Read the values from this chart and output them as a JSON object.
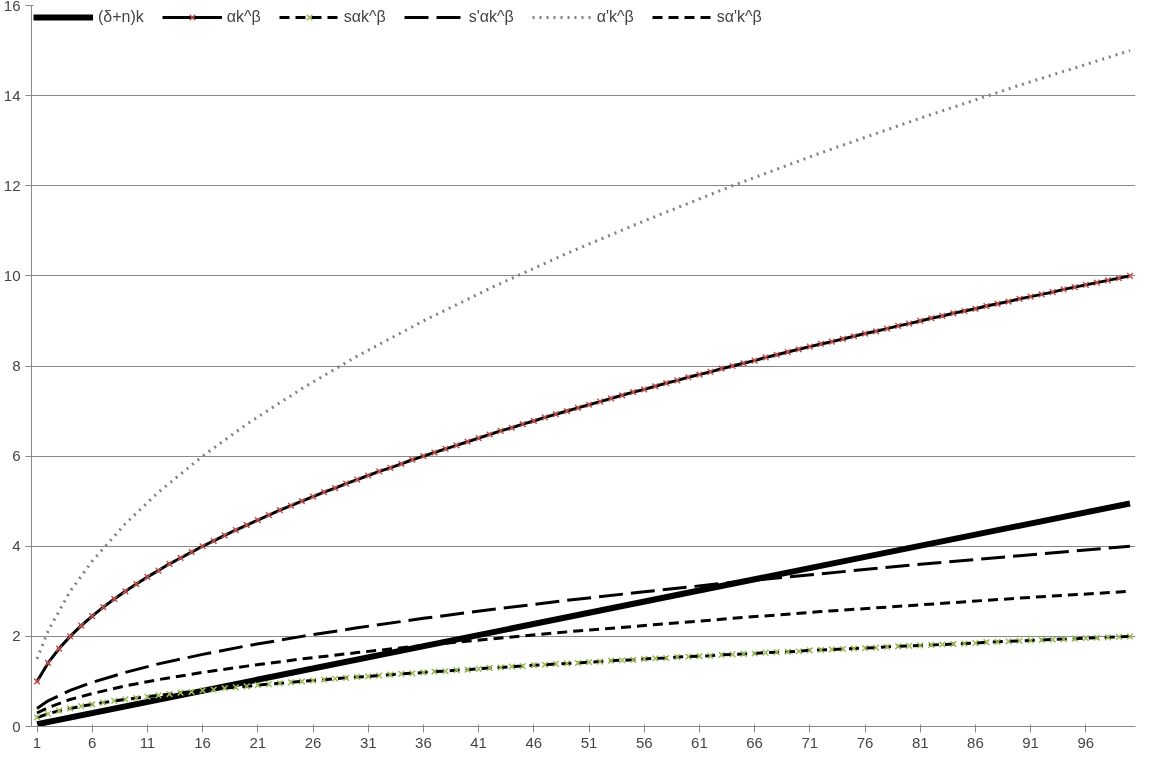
{
  "chart_data": {
    "type": "line",
    "xlim": [
      0.5,
      100.5
    ],
    "xticks": [
      1,
      6,
      11,
      16,
      21,
      26,
      31,
      36,
      41,
      46,
      51,
      56,
      61,
      66,
      71,
      76,
      81,
      86,
      91,
      96
    ],
    "ylim": [
      0,
      16
    ],
    "yticks": [
      0,
      2,
      4,
      6,
      8,
      10,
      12,
      14,
      16
    ],
    "grid": "y",
    "legend": "top",
    "x": [
      1,
      2,
      3,
      4,
      5,
      6,
      7,
      8,
      9,
      10,
      11,
      12,
      13,
      14,
      15,
      16,
      17,
      18,
      19,
      20,
      21,
      22,
      23,
      24,
      25,
      26,
      27,
      28,
      29,
      30,
      31,
      32,
      33,
      34,
      35,
      36,
      37,
      38,
      39,
      40,
      41,
      42,
      43,
      44,
      45,
      46,
      47,
      48,
      49,
      50,
      51,
      52,
      53,
      54,
      55,
      56,
      57,
      58,
      59,
      60,
      61,
      62,
      63,
      64,
      65,
      66,
      67,
      68,
      69,
      70,
      71,
      72,
      73,
      74,
      75,
      76,
      77,
      78,
      79,
      80,
      81,
      82,
      83,
      84,
      85,
      86,
      87,
      88,
      89,
      90,
      91,
      92,
      93,
      94,
      95,
      96,
      97,
      98,
      99,
      100
    ],
    "series": [
      {
        "name": "(δ+n)k",
        "color": "#000000",
        "x": [
          1,
          100
        ],
        "values": [
          0.05,
          4.95
        ],
        "line_style": "solid",
        "marker": "none"
      },
      {
        "name": "αk^β",
        "color": "#c0504d",
        "marker": "cross",
        "line_style": "solid",
        "values": [
          1.0,
          1.41,
          1.73,
          2.0,
          2.24,
          2.45,
          2.65,
          2.83,
          3.0,
          3.16,
          3.32,
          3.46,
          3.61,
          3.74,
          3.87,
          4.0,
          4.12,
          4.24,
          4.36,
          4.47,
          4.58,
          4.69,
          4.8,
          4.9,
          5.0,
          5.1,
          5.2,
          5.29,
          5.39,
          5.48,
          5.57,
          5.66,
          5.74,
          5.83,
          5.92,
          6.0,
          6.08,
          6.16,
          6.24,
          6.32,
          6.4,
          6.48,
          6.56,
          6.63,
          6.71,
          6.78,
          6.86,
          6.93,
          7.0,
          7.07,
          7.14,
          7.21,
          7.28,
          7.35,
          7.42,
          7.48,
          7.55,
          7.62,
          7.68,
          7.75,
          7.81,
          7.87,
          7.94,
          8.0,
          8.06,
          8.12,
          8.19,
          8.25,
          8.31,
          8.37,
          8.43,
          8.49,
          8.54,
          8.6,
          8.66,
          8.72,
          8.77,
          8.83,
          8.89,
          8.94,
          9.0,
          9.06,
          9.11,
          9.17,
          9.22,
          9.27,
          9.33,
          9.38,
          9.43,
          9.49,
          9.54,
          9.59,
          9.64,
          9.7,
          9.75,
          9.8,
          9.85,
          9.9,
          9.95,
          10.0
        ]
      },
      {
        "name": "sαk^β",
        "color": "#9bbb59",
        "marker": "cross",
        "line_style": "dashed",
        "values": [
          0.2,
          0.28,
          0.35,
          0.4,
          0.45,
          0.49,
          0.53,
          0.57,
          0.6,
          0.63,
          0.66,
          0.69,
          0.72,
          0.75,
          0.77,
          0.8,
          0.82,
          0.85,
          0.87,
          0.89,
          0.92,
          0.94,
          0.96,
          0.98,
          1.0,
          1.02,
          1.04,
          1.06,
          1.08,
          1.1,
          1.11,
          1.13,
          1.15,
          1.17,
          1.18,
          1.2,
          1.22,
          1.23,
          1.25,
          1.26,
          1.28,
          1.3,
          1.31,
          1.33,
          1.34,
          1.36,
          1.37,
          1.39,
          1.4,
          1.41,
          1.43,
          1.44,
          1.46,
          1.47,
          1.48,
          1.5,
          1.51,
          1.52,
          1.54,
          1.55,
          1.56,
          1.57,
          1.59,
          1.6,
          1.61,
          1.62,
          1.64,
          1.65,
          1.66,
          1.67,
          1.69,
          1.7,
          1.71,
          1.72,
          1.73,
          1.74,
          1.75,
          1.77,
          1.78,
          1.79,
          1.8,
          1.81,
          1.82,
          1.83,
          1.84,
          1.85,
          1.87,
          1.88,
          1.89,
          1.9,
          1.91,
          1.92,
          1.93,
          1.94,
          1.95,
          1.96,
          1.97,
          1.98,
          1.99,
          2.0
        ]
      },
      {
        "name": "s'αk^β",
        "color": "#000000",
        "marker": "none",
        "line_style": "longdash",
        "x": [
          1,
          2,
          4,
          6,
          9,
          12,
          16,
          20,
          25,
          30,
          36,
          42,
          49,
          56,
          64,
          72,
          81,
          90,
          100
        ],
        "values": [
          0.4,
          0.57,
          0.8,
          0.98,
          1.2,
          1.39,
          1.6,
          1.79,
          2,
          2.19,
          2.4,
          2.59,
          2.8,
          2.99,
          3.2,
          3.39,
          3.6,
          3.79,
          4
        ]
      },
      {
        "name": "α'k^β",
        "color": "#808080",
        "marker": "none",
        "line_style": "dotted",
        "x": [
          1,
          2,
          4,
          6,
          9,
          12,
          16,
          20,
          25,
          30,
          36,
          42,
          49,
          56,
          64,
          72,
          81,
          90,
          100
        ],
        "values": [
          1.5,
          2.12,
          3,
          3.67,
          4.5,
          5.2,
          6,
          6.71,
          7.5,
          8.22,
          9,
          9.72,
          10.5,
          11.22,
          12,
          12.73,
          13.5,
          14.23,
          15
        ]
      },
      {
        "name": "sα'k^β",
        "color": "#000000",
        "marker": "none",
        "line_style": "dashed",
        "x": [
          1,
          2,
          4,
          6,
          9,
          12,
          16,
          20,
          25,
          30,
          36,
          42,
          49,
          56,
          64,
          72,
          81,
          90,
          100
        ],
        "values": [
          0.3,
          0.42,
          0.6,
          0.73,
          0.9,
          1.04,
          1.2,
          1.34,
          1.5,
          1.64,
          1.8,
          1.94,
          2.1,
          2.24,
          2.4,
          2.55,
          2.7,
          2.85,
          3
        ]
      }
    ]
  }
}
